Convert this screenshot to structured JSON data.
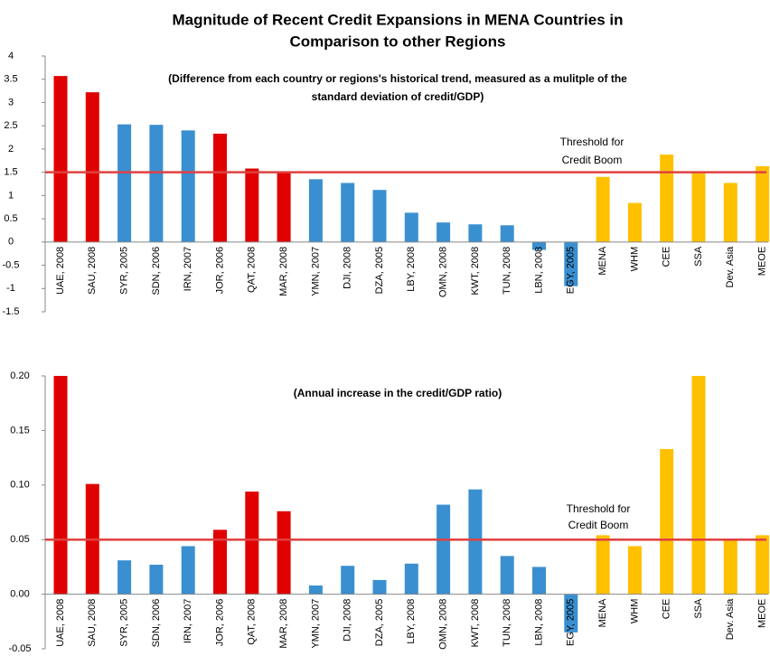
{
  "title": [
    "Magnitude of Recent Credit Expansions in MENA  Countries in",
    "Comparison to other Regions"
  ],
  "chart_data": [
    {
      "type": "bar",
      "subtitle": [
        "(Difference from each country or regions's historical trend,  measured as a mulitple of  the",
        "standard deviation of credit/GDP)"
      ],
      "categories": [
        "UAE, 2008",
        "SAU, 2008",
        "SYR, 2005",
        "SDN, 2006",
        "IRN, 2007",
        "JOR, 2006",
        "QAT, 2008",
        "MAR, 2008",
        "YMN, 2007",
        "DJI, 2008",
        "DZA, 2005",
        "LBY, 2008",
        "OMN, 2008",
        "KWT, 2008",
        "TUN, 2008",
        "LBN, 2008",
        "EGY, 2005",
        "MENA",
        "WHM",
        "CEE",
        "SSA",
        "Dev. Asia",
        "MEOE"
      ],
      "values": [
        3.57,
        3.22,
        2.53,
        2.52,
        2.4,
        2.33,
        1.58,
        1.5,
        1.35,
        1.27,
        1.12,
        0.63,
        0.42,
        0.38,
        0.36,
        -0.17,
        -0.95,
        1.4,
        0.84,
        1.88,
        1.48,
        1.27,
        1.63
      ],
      "colors": [
        "#e00000",
        "#e00000",
        "#3a8fd0",
        "#3a8fd0",
        "#3a8fd0",
        "#e00000",
        "#e00000",
        "#e00000",
        "#3a8fd0",
        "#3a8fd0",
        "#3a8fd0",
        "#3a8fd0",
        "#3a8fd0",
        "#3a8fd0",
        "#3a8fd0",
        "#3a8fd0",
        "#3a8fd0",
        "#ffc000",
        "#ffc000",
        "#ffc000",
        "#ffc000",
        "#ffc000",
        "#ffc000"
      ],
      "threshold": 1.5,
      "threshold_color": "#e04040",
      "annotation": [
        "Threshold for",
        "Credit Boom"
      ],
      "ylim": [
        -1.5,
        4
      ],
      "yticks": [
        -1.5,
        -1,
        -0.5,
        0,
        0.5,
        1,
        1.5,
        2,
        2.5,
        3,
        3.5,
        4
      ]
    },
    {
      "type": "bar",
      "subtitle": [
        "(Annual increase in the credit/GDP ratio)"
      ],
      "categories": [
        "UAE, 2008",
        "SAU, 2008",
        "SYR, 2005",
        "SDN, 2006",
        "IRN, 2007",
        "JOR, 2006",
        "QAT, 2008",
        "MAR, 2008",
        "YMN, 2007",
        "DJI, 2008",
        "DZA, 2005",
        "LBY, 2008",
        "OMN, 2008",
        "KWT, 2008",
        "TUN, 2008",
        "LBN, 2008",
        "EGY, 2005",
        "MENA",
        "WHM",
        "CEE",
        "SSA",
        "Dev. Asia",
        "MEOE"
      ],
      "values": [
        0.2,
        0.101,
        0.031,
        0.027,
        0.044,
        0.059,
        0.094,
        0.076,
        0.008,
        0.026,
        0.013,
        0.028,
        0.082,
        0.096,
        0.035,
        0.025,
        -0.035,
        0.054,
        0.044,
        0.133,
        0.2,
        0.049,
        0.054
      ],
      "colors": [
        "#e00000",
        "#e00000",
        "#3a8fd0",
        "#3a8fd0",
        "#3a8fd0",
        "#e00000",
        "#e00000",
        "#e00000",
        "#3a8fd0",
        "#3a8fd0",
        "#3a8fd0",
        "#3a8fd0",
        "#3a8fd0",
        "#3a8fd0",
        "#3a8fd0",
        "#3a8fd0",
        "#3a8fd0",
        "#ffc000",
        "#ffc000",
        "#ffc000",
        "#ffc000",
        "#ffc000",
        "#ffc000"
      ],
      "threshold": 0.05,
      "threshold_color": "#e04040",
      "annotation": [
        "Threshold for",
        "Credit Boom"
      ],
      "ylim": [
        -0.05,
        0.2
      ],
      "yticks": [
        {
          "value": -0.05,
          "label": "-0.05"
        },
        {
          "value": 0,
          "label": "0.00"
        },
        {
          "value": 0.05,
          "label": "0.05"
        },
        {
          "value": 0.1,
          "label": "0.10"
        },
        {
          "value": 0.15,
          "label": "0.15"
        },
        {
          "value": 0.2,
          "label": "0.20"
        }
      ]
    }
  ]
}
